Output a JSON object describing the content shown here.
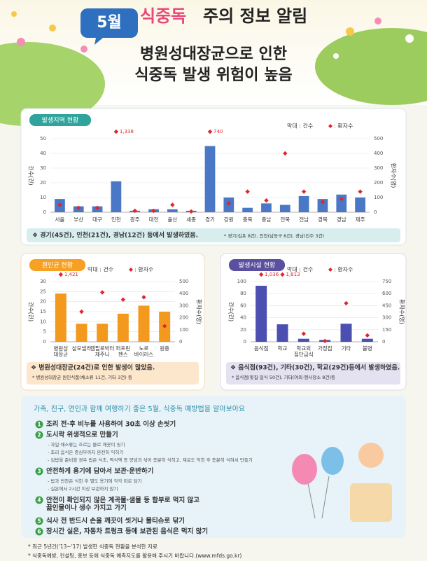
{
  "header": {
    "badge": "5월",
    "highlight": "식중독",
    "title": "주의 정보 알림",
    "subtitle": [
      "병원성대장균으로 인한",
      "식중독 발생 위험이 높음"
    ]
  },
  "chart_data": [
    {
      "type": "bar",
      "title": "발생지역 현황",
      "ylabel": "건수(건)",
      "y2label": "환자수(명)",
      "categories": [
        "서울",
        "부산",
        "대구",
        "인천",
        "광주",
        "대전",
        "울산",
        "세종",
        "경기",
        "강원",
        "충북",
        "충남",
        "전북",
        "전남",
        "경북",
        "경남",
        "제주"
      ],
      "series": [
        {
          "name": "막대 : 건수",
          "color": "#4a78c6",
          "values": [
            9,
            4,
            4,
            21,
            1,
            2,
            2,
            1,
            45,
            10,
            3,
            6,
            5,
            11,
            9,
            12,
            10
          ]
        },
        {
          "name": ": 환자수",
          "color": "#e0262b",
          "axis": "y2",
          "values": [
            50,
            30,
            30,
            1338,
            10,
            10,
            50,
            5,
            740,
            60,
            140,
            80,
            400,
            140,
            70,
            90,
            140
          ],
          "value_labels": [
            null,
            null,
            null,
            "1,338",
            null,
            null,
            null,
            null,
            "740",
            null,
            null,
            null,
            null,
            null,
            null,
            null,
            null
          ]
        }
      ],
      "ylim": [
        0,
        50
      ],
      "yticks": [
        0,
        10,
        20,
        30,
        40,
        50
      ],
      "y2lim": [
        0,
        500
      ],
      "y2ticks": [
        0,
        100,
        200,
        300,
        400,
        500
      ],
      "grid": true,
      "note": "❖ 경기(45건), 인천(21건), 경남(12건) 등에서 발생하였음.",
      "subnote": "* 경기(김포 8건), 인천(남동구 6건), 경남(진주 3건)"
    },
    {
      "type": "bar",
      "title": "원인균 현황",
      "ylabel": "건수(건)",
      "y2label": "환자수(명)",
      "categories": [
        "병원성\n대장균",
        "살모넬라",
        "캠필로박터\n제주니",
        "퍼프린\n젠스",
        "노로\n바이러스",
        "원충"
      ],
      "series": [
        {
          "name": "막대 : 건수",
          "color": "#f39a1e",
          "values": [
            24,
            9,
            9,
            14,
            18,
            15
          ]
        },
        {
          "name": ": 환자수",
          "color": "#e0262b",
          "axis": "y2",
          "values": [
            1421,
            250,
            410,
            350,
            370,
            130
          ],
          "value_labels": [
            "1,421",
            null,
            null,
            null,
            null,
            null
          ]
        }
      ],
      "ylim": [
        0,
        30
      ],
      "yticks": [
        0,
        5,
        10,
        15,
        20,
        25,
        30
      ],
      "y2lim": [
        0,
        500
      ],
      "y2ticks": [
        0,
        100,
        200,
        300,
        400,
        500
      ],
      "grid": true,
      "note": "❖ 병원성대장균(24건)로 인한 발생이 많았음.",
      "subnote": "* 병원성대장균 원인식품(채소류 11건, 기타 3건) 등"
    },
    {
      "type": "bar",
      "title": "발생시설 현황",
      "ylabel": "건수(건)",
      "y2label": "환자수(명)",
      "categories": [
        "음식점",
        "학교",
        "학교외\n집단급식",
        "가정집",
        "기타",
        "불명"
      ],
      "series": [
        {
          "name": "막대 : 건수",
          "color": "#4b4fb0",
          "values": [
            93,
            29,
            5,
            3,
            30,
            5
          ]
        },
        {
          "name": ": 환자수",
          "color": "#e0262b",
          "axis": "y2",
          "values": [
            1036,
            1813,
            100,
            10,
            480,
            80
          ],
          "value_labels": [
            "1,036",
            "1,813",
            null,
            null,
            null,
            null
          ]
        }
      ],
      "ylim": [
        0,
        100
      ],
      "yticks": [
        0,
        20,
        40,
        60,
        80,
        100
      ],
      "y2lim": [
        0,
        750
      ],
      "y2ticks": [
        0,
        150,
        300,
        450,
        600,
        750
      ],
      "grid": true,
      "note": "❖ 음식점(93건), 기타(30건), 학교(29건)등에서 발생하였음.",
      "subnote": "* 음식점(횟집·일식 50건), 기타(야외·행사장소 8건)등"
    }
  ],
  "tips": {
    "heading": "가족, 친구, 연인과 함께 여행하기 좋은 5월, 식중독 예방법을 알아보아요",
    "items": [
      {
        "number": 1,
        "text": "조리 전·후 비누를 사용하여 30초 이상 손씻기",
        "subs": []
      },
      {
        "number": 2,
        "text": "도시락 위생적으로 만들기",
        "subs": [
          "- 과일·채소류는 흐르는 물로 깨끗이 씻기",
          "- 조리 음식은 중심부까지 완전히 익히기",
          "- 김밥을 준비할 경우 밥은 식초, 떡식액 등 양념과 섞어 충분히 식히고, 재료도 익힌 후 충분히 식혀서 만들기"
        ]
      },
      {
        "number": 3,
        "text": "안전하게 용기에 담아서 보관·운반하기",
        "subs": [
          "- 밥과 반찬은 식힌 후 별도 용기에 각각 따로 담기",
          "- 실온에서 2시간 이상 보관하지 않기"
        ]
      },
      {
        "number": 4,
        "text": "안전이 확인되지 않은 계곡물·샘물 등 함부로 먹지 않고\n끓인물이나 생수 가지고 가기",
        "subs": []
      },
      {
        "number": 5,
        "text": "식사 전 반드시 손을 깨끗이 씻거나 물티슈로 닦기",
        "subs": []
      },
      {
        "number": 6,
        "text": "장시간 실온, 자동차 트렁크 등에 보관된 음식은 먹지 않기",
        "subs": []
      }
    ]
  },
  "footer": [
    "* 최근 5년간('13~'17) 발생한 식중독 현황을 분석한 자료",
    "* 식중독예방, 컨설팅, 홍보 등에 식중독 예측지도를 활용해 주시기 바랍니다.(www.mfds.go.kr)"
  ]
}
